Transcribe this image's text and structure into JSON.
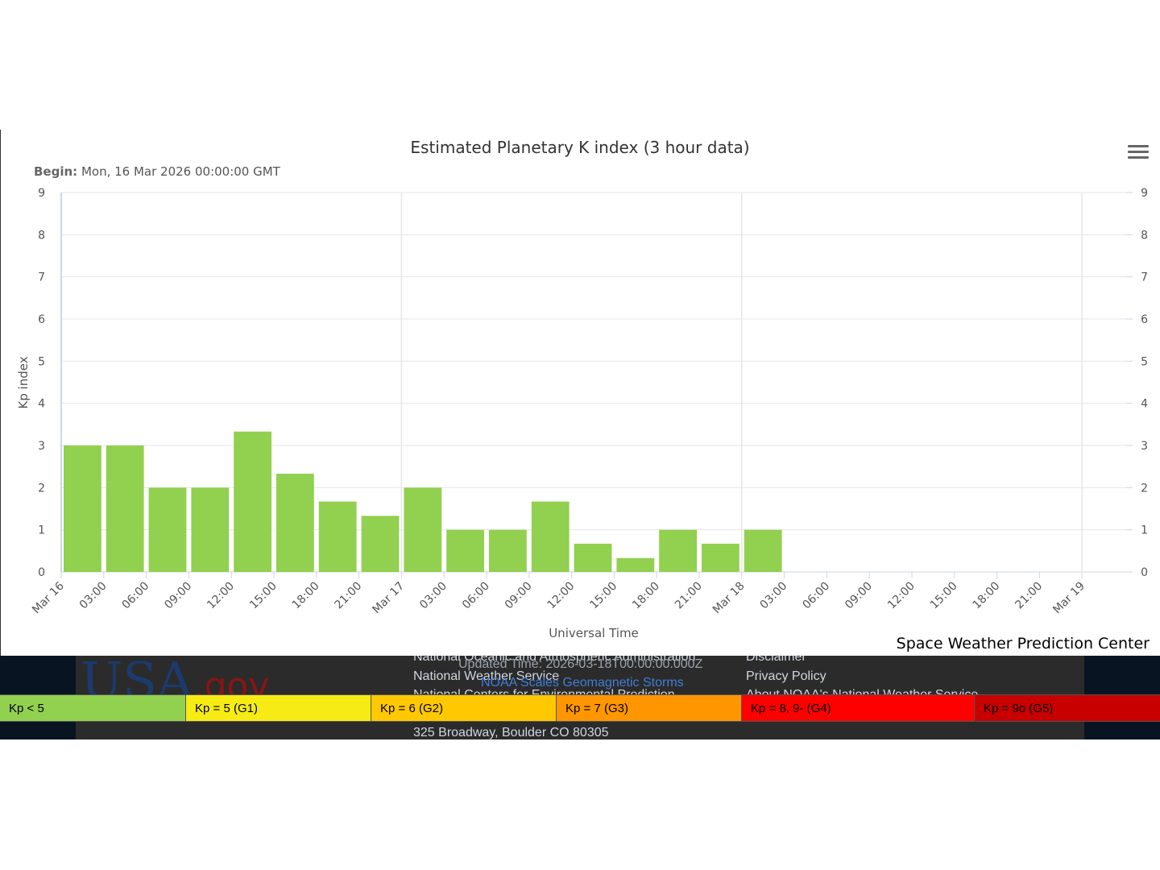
{
  "chart_data": {
    "type": "bar",
    "title": "Estimated Planetary K index (3 hour data)",
    "begin_label": "Begin:",
    "begin_value": "Mon, 16 Mar 2026 00:00:00 GMT",
    "ylabel": "Kp index",
    "xlabel": "Universal Time",
    "ylim": [
      0,
      9
    ],
    "yticks": [
      0,
      1,
      2,
      3,
      4,
      5,
      6,
      7,
      8,
      9
    ],
    "x_tick_labels": [
      "Mar 16",
      "03:00",
      "06:00",
      "09:00",
      "12:00",
      "15:00",
      "18:00",
      "21:00",
      "Mar 17",
      "03:00",
      "06:00",
      "09:00",
      "12:00",
      "15:00",
      "18:00",
      "21:00",
      "Mar 18",
      "03:00",
      "06:00",
      "09:00",
      "12:00",
      "15:00",
      "18:00",
      "21:00",
      "Mar 19"
    ],
    "x_range_hours": [
      0,
      72
    ],
    "bar_width_hours": 3,
    "bar_color": "#92d050",
    "grid": true,
    "values": [
      3.0,
      3.0,
      2.0,
      2.0,
      3.33,
      2.33,
      1.67,
      1.33,
      2.0,
      1.0,
      1.0,
      1.67,
      0.67,
      0.33,
      1.0,
      0.67,
      1.0
    ]
  },
  "menu": {
    "icon": "hamburger-menu-icon"
  },
  "credit": "Space Weather Prediction Center",
  "footer": {
    "logo_main": "USA",
    "logo_suffix": ".gov",
    "links_left": [
      "National Oceanic and Atmospheric Administration",
      "National Weather Service",
      "National Centers for Environmental Prediction"
    ],
    "updated": "Updated Time: 2026-03-18T00:00:00.000Z",
    "scales_link": "NOAA Scales Geomagnetic Storms",
    "links_right": [
      "Disclaimer",
      "Privacy Policy",
      "About NOAA's National Weather Service"
    ],
    "address": "325 Broadway, Boulder CO 80305"
  },
  "legend": [
    {
      "label": "Kp < 5",
      "color": "#92d050"
    },
    {
      "label": "Kp = 5 (G1)",
      "color": "#f6eb14"
    },
    {
      "label": "Kp = 6 (G2)",
      "color": "#ffc800"
    },
    {
      "label": "Kp = 7 (G3)",
      "color": "#ff9600"
    },
    {
      "label": "Kp = 8, 9- (G4)",
      "color": "#ff0000"
    },
    {
      "label": "Kp = 9o (G5)",
      "color": "#c80000"
    }
  ]
}
